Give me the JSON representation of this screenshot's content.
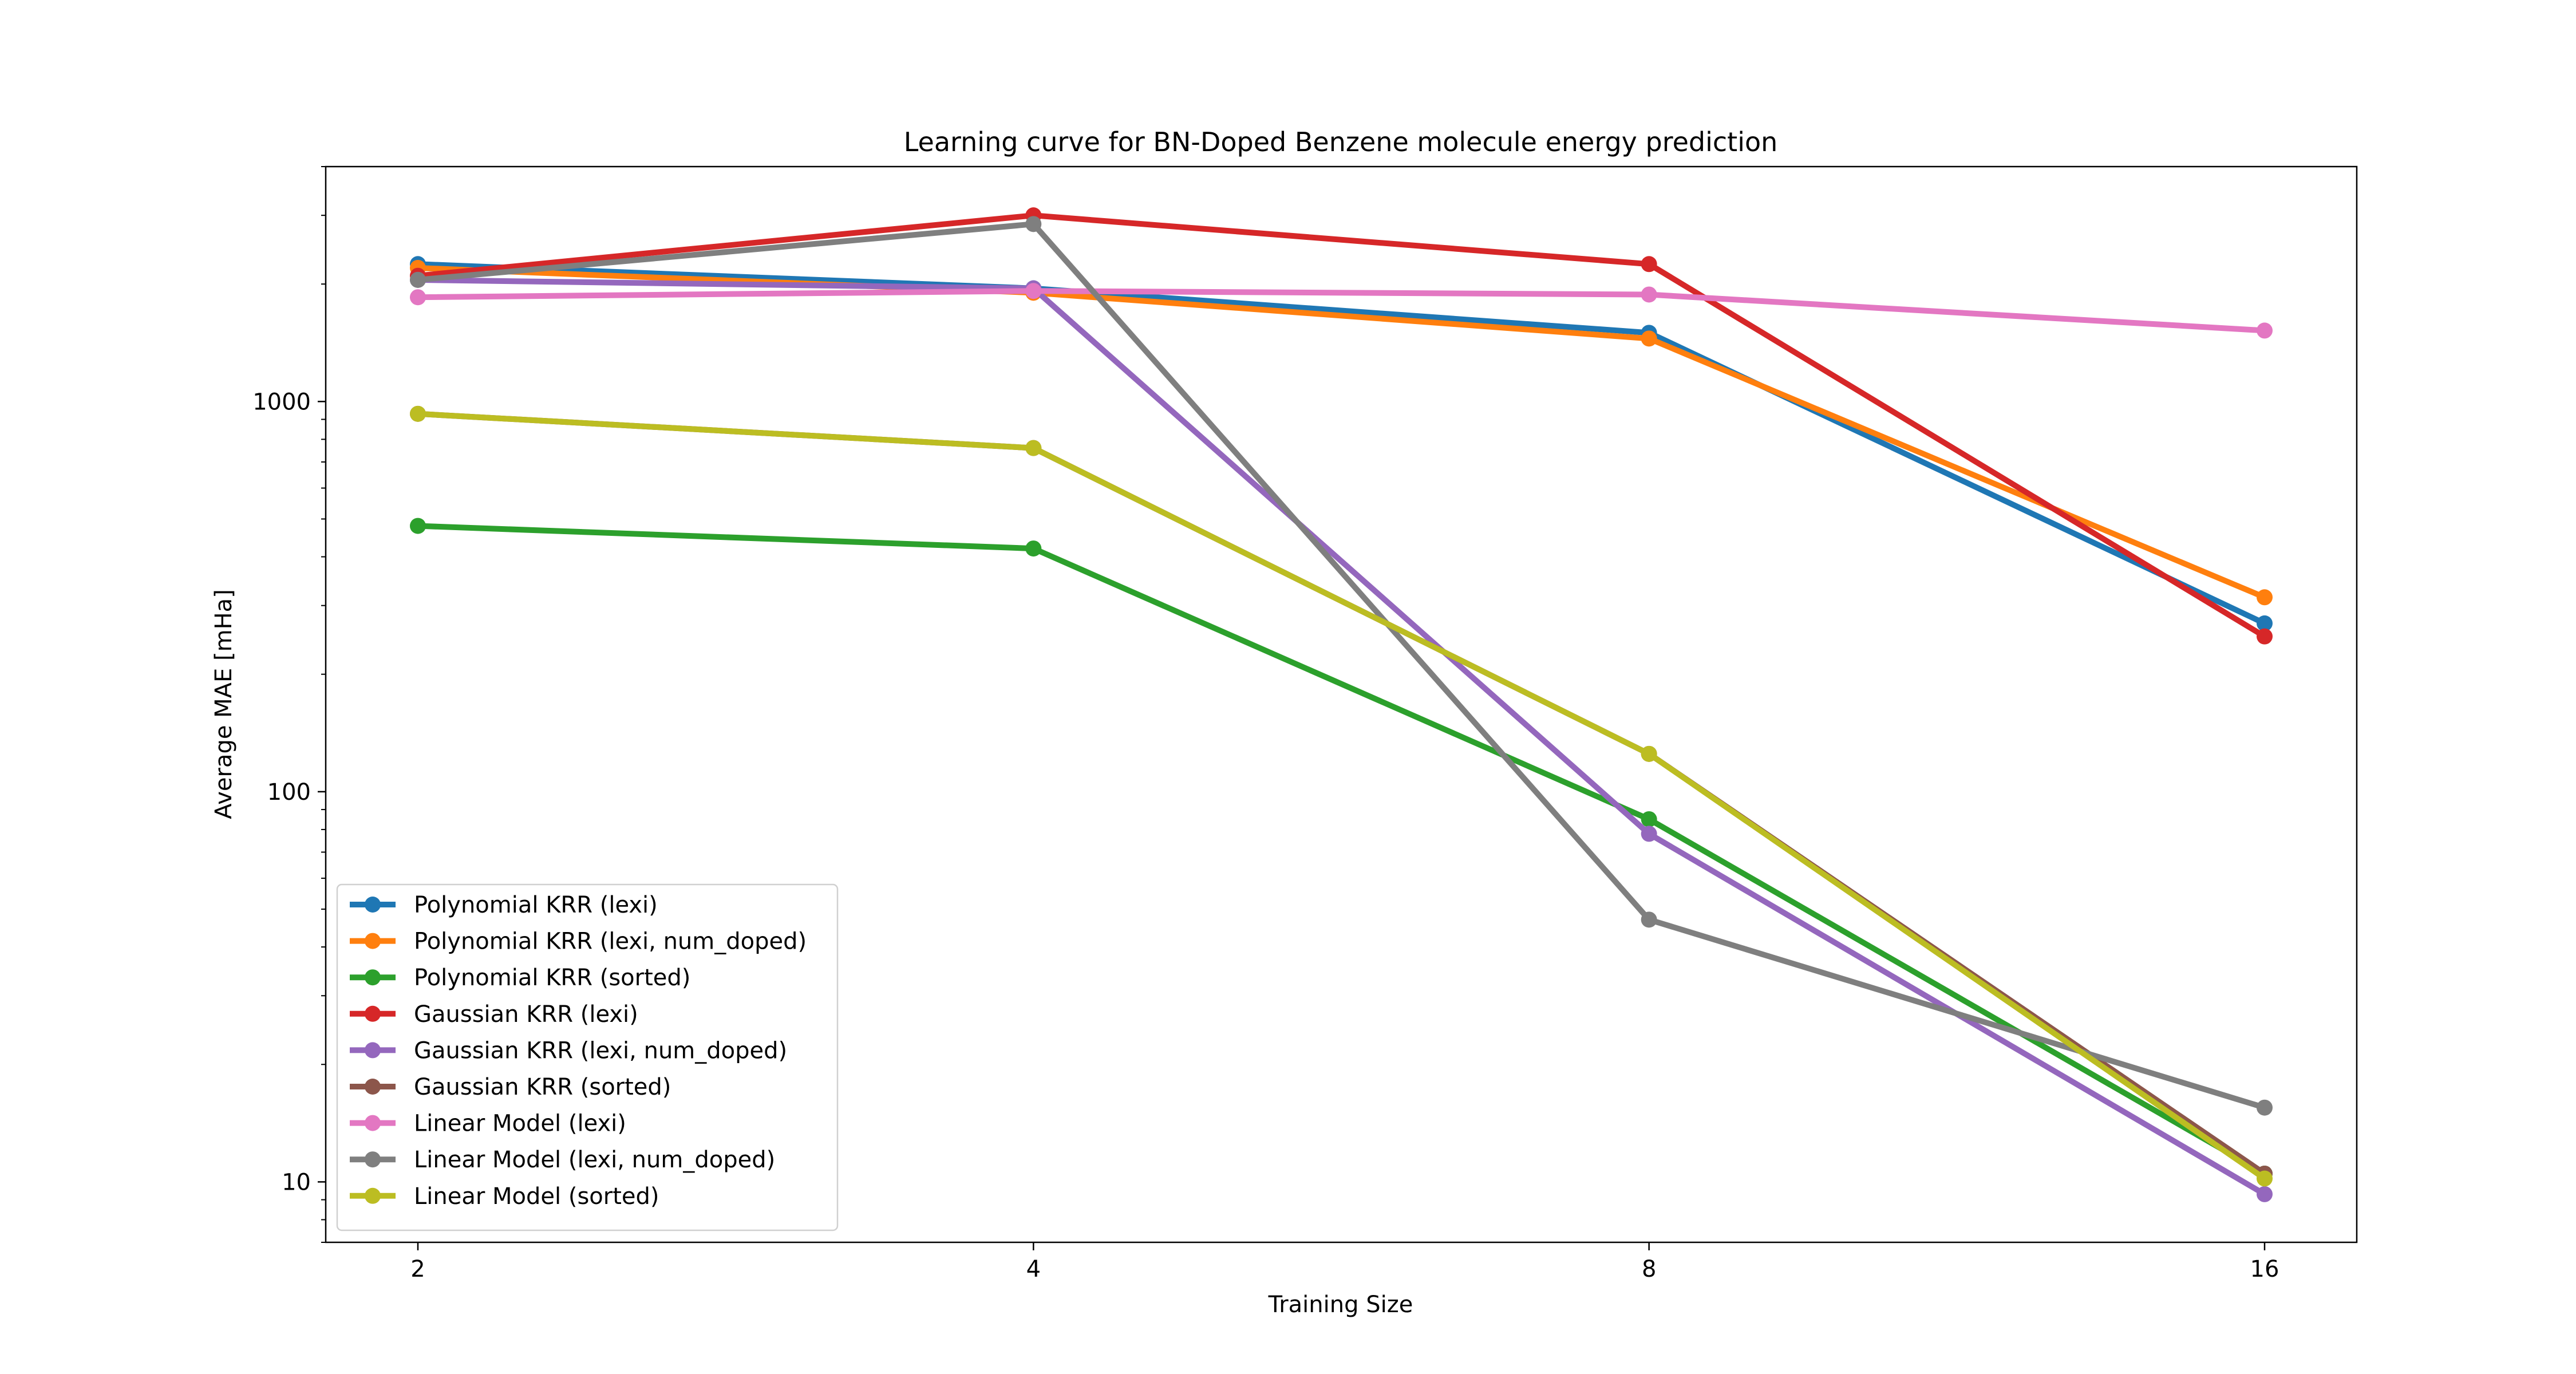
{
  "chart_data": {
    "type": "line",
    "title": "Learning curve for BN-Doped Benzene molecule energy prediction",
    "xlabel": "Training Size",
    "ylabel": "Average MAE [mHa]",
    "xscale": "log2",
    "yscale": "log",
    "x": [
      2,
      4,
      8,
      16
    ],
    "x_tick_labels": [
      "2",
      "4",
      "8",
      "16"
    ],
    "y_tick_values": [
      10,
      100,
      1000
    ],
    "y_tick_labels": [
      "10",
      "100",
      "1000"
    ],
    "ylim": [
      7,
      4000
    ],
    "grid": false,
    "legend_position": "lower-left",
    "series": [
      {
        "name": "Polynomial KRR (lexi)",
        "color": "#1f77b4",
        "values": [
          2250,
          1950,
          1500,
          270
        ]
      },
      {
        "name": "Polynomial KRR (lexi, num_doped)",
        "color": "#ff7f0e",
        "values": [
          2200,
          1900,
          1450,
          315
        ]
      },
      {
        "name": "Polynomial KRR (sorted)",
        "color": "#2ca02c",
        "values": [
          480,
          420,
          85,
          10.5
        ]
      },
      {
        "name": "Gaussian KRR (lexi)",
        "color": "#d62728",
        "values": [
          2100,
          3000,
          2250,
          250
        ]
      },
      {
        "name": "Gaussian KRR (lexi, num_doped)",
        "color": "#9467bd",
        "values": [
          2050,
          1950,
          78,
          9.3
        ]
      },
      {
        "name": "Gaussian KRR (sorted)",
        "color": "#8c564b",
        "values": [
          930,
          760,
          125,
          10.5
        ]
      },
      {
        "name": "Linear Model (lexi)",
        "color": "#e377c2",
        "values": [
          1850,
          1920,
          1880,
          1520
        ]
      },
      {
        "name": "Linear Model (lexi, num_doped)",
        "color": "#7f7f7f",
        "values": [
          2050,
          2850,
          47,
          15.5
        ]
      },
      {
        "name": "Linear Model (sorted)",
        "color": "#bcbd22",
        "values": [
          930,
          760,
          125,
          10.2
        ]
      }
    ]
  }
}
